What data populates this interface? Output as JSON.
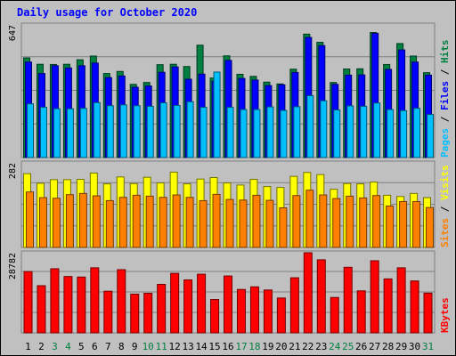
{
  "chart_data": {
    "type": "bar",
    "title": "Daily usage for October 2020",
    "categories": [
      "1",
      "2",
      "3",
      "4",
      "5",
      "6",
      "7",
      "8",
      "9",
      "10",
      "11",
      "12",
      "13",
      "14",
      "15",
      "16",
      "17",
      "18",
      "19",
      "20",
      "21",
      "22",
      "23",
      "24",
      "25",
      "26",
      "27",
      "28",
      "29",
      "30",
      "31"
    ],
    "weekend_days": [
      "3",
      "4",
      "10",
      "11",
      "17",
      "18",
      "24",
      "25",
      "31"
    ],
    "panels": [
      {
        "id": "hits",
        "max_label": "647",
        "ylim": [
          0,
          647
        ],
        "legend": [
          "Pages",
          "Files",
          "Hits"
        ],
        "series": [
          {
            "name": "Hits",
            "color": "#008040",
            "values": [
              486,
              455,
              454,
              455,
              477,
              495,
              410,
              420,
              357,
              366,
              453,
              455,
              444,
              548,
              388,
              496,
              406,
              396,
              368,
              359,
              431,
              602,
              562,
              366,
              432,
              433,
              610,
              454,
              556,
              495,
              414
            ]
          },
          {
            "name": "Files",
            "color": "#0000ff",
            "values": [
              466,
              410,
              448,
              437,
              448,
              461,
              390,
              398,
              343,
              349,
              416,
              442,
              382,
              407,
              372,
              474,
              386,
              378,
              351,
              355,
              415,
              586,
              546,
              357,
              402,
              403,
              606,
              430,
              525,
              466,
              402
            ]
          },
          {
            "name": "Pages",
            "color": "#00c0ff",
            "values": [
              262,
              245,
              238,
              238,
              240,
              268,
              253,
              257,
              253,
              250,
              267,
              254,
              272,
              245,
              417,
              245,
              234,
              234,
              247,
              230,
              248,
              302,
              277,
              232,
              252,
              250,
              266,
              234,
              229,
              240,
              210
            ]
          }
        ]
      },
      {
        "id": "visits",
        "max_label": "282",
        "ylim": [
          0,
          282
        ],
        "legend": [
          "Sites",
          "Visits"
        ],
        "series": [
          {
            "name": "Visits",
            "color": "#ffff00",
            "values": [
              246,
              214,
              226,
              226,
              227,
              248,
              212,
              235,
              213,
              234,
              215,
              251,
              212,
              228,
              233,
              215,
              208,
              227,
              203,
              200,
              237,
              250,
              243,
              194,
              213,
              212,
              218,
              174,
              170,
              180,
              166
            ]
          },
          {
            "name": "Sites",
            "color": "#ff8000",
            "values": [
              185,
              166,
              164,
              176,
              180,
              172,
              156,
              167,
              174,
              171,
              167,
              175,
              167,
              156,
              177,
              160,
              158,
              174,
              157,
              132,
              173,
              191,
              175,
              163,
              171,
              165,
              173,
              138,
              153,
              153,
              133
            ]
          }
        ]
      },
      {
        "id": "kbytes",
        "max_label": "28782",
        "ylim": [
          0,
          28782
        ],
        "legend": [
          "KBytes"
        ],
        "series": [
          {
            "name": "KBytes",
            "color": "#ff0000",
            "values": [
              22022,
              16946,
              23041,
              20253,
              20064,
              23377,
              14966,
              22708,
              13917,
              14221,
              17430,
              21379,
              19036,
              21071,
              11986,
              20445,
              15598,
              16530,
              15396,
              12520,
              19797,
              28782,
              26258,
              12724,
              23560,
              15092,
              25908,
              19393,
              23377,
              18655,
              14285
            ]
          }
        ]
      }
    ],
    "colors": {
      "background": "#c0c0c0",
      "title": "#0000ff",
      "weekday_label": "#000000",
      "weekend_label": "#008040",
      "separator": "#000000"
    }
  }
}
